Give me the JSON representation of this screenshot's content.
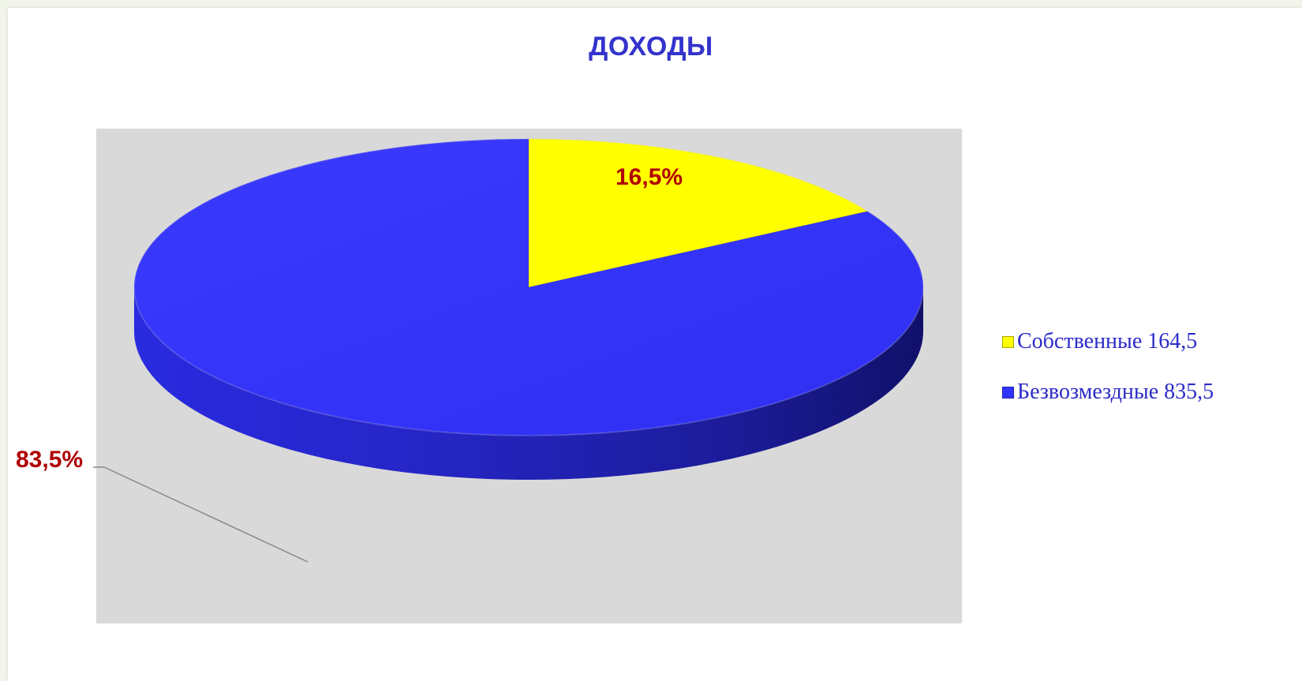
{
  "chart_data": {
    "type": "pie",
    "title": "ДОХОДЫ",
    "slices": [
      {
        "label": "Собственные",
        "value": 164.5,
        "percent_label": "16,5%",
        "legend_label": "Собственные 164,5",
        "color": "#ffff00"
      },
      {
        "label": "Безвозмездные",
        "value": 835.5,
        "percent_label": "83,5%",
        "legend_label": "Безвозмездные 835,5",
        "color": "#3333ff"
      }
    ],
    "legend_position": "right",
    "plot_background": "#d9d9d9",
    "style": "3d"
  }
}
